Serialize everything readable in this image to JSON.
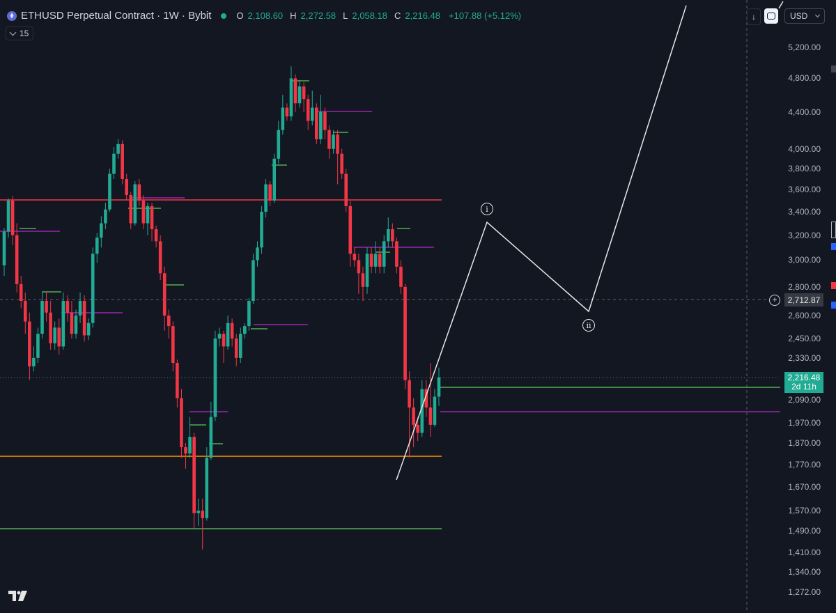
{
  "legend": {
    "title": "ETHUSD Perpetual Contract · 1W · Bybit",
    "o_key": "O",
    "o": "2,108.60",
    "h_key": "H",
    "h": "2,272.58",
    "l_key": "L",
    "l": "2,058.18",
    "c_key": "C",
    "c": "2,216.48",
    "change": "+107.88 (+5.12%)"
  },
  "indicator": {
    "value": "15"
  },
  "controls": {
    "currency": "USD"
  },
  "icons": {
    "coin": "ethereum-coin-icon",
    "down_arrow": "arrow-down-icon",
    "cycle": "refresh-icon",
    "chevron": "chevron-down-icon",
    "plus": "plus-circle-icon",
    "logo": "tradingview-logo-icon"
  },
  "price_axis": {
    "ticks": [
      "5,200.00",
      "4,800.00",
      "4,400.00",
      "4,000.00",
      "3,800.00",
      "3,600.00",
      "3,400.00",
      "3,200.00",
      "3,000.00",
      "2,800.00",
      "2,600.00",
      "2,450.00",
      "2,330.00",
      "2,090.00",
      "1,970.00",
      "1,870.00",
      "1,770.00",
      "1,670.00",
      "1,570.00",
      "1,490.00",
      "1,410.00",
      "1,340.00",
      "1,272.00"
    ],
    "crosshair_price": "2,712.87",
    "last_price": "2,216.48",
    "countdown": "2d 11h"
  },
  "waves": [
    "i",
    "ii"
  ],
  "colors": {
    "background": "#131722",
    "up": "#22ab94",
    "down": "#f23645",
    "resistance": "#f23645",
    "support_orange": "#ff9800",
    "support_green": "#4caf50",
    "purple": "#9c27b0",
    "projection": "#e6e6e6"
  },
  "chart_data": {
    "type": "candlestick",
    "symbol": "ETHUSD",
    "interval": "1W",
    "scale": "log",
    "ylim": [
      1230,
      5500
    ],
    "candles": [
      [
        2960,
        3230,
        2880,
        3260
      ],
      [
        3230,
        3500,
        3180,
        3520
      ],
      [
        3500,
        3200,
        3120,
        3540
      ],
      [
        3200,
        2820,
        2760,
        3300
      ],
      [
        2820,
        2700,
        2650,
        2880
      ],
      [
        2700,
        2560,
        2480,
        2760
      ],
      [
        2560,
        2280,
        2200,
        2620
      ],
      [
        2280,
        2330,
        2250,
        2400
      ],
      [
        2330,
        2480,
        2300,
        2520
      ],
      [
        2480,
        2700,
        2450,
        2760
      ],
      [
        2700,
        2620,
        2560,
        2760
      ],
      [
        2620,
        2420,
        2380,
        2700
      ],
      [
        2420,
        2520,
        2380,
        2560
      ],
      [
        2520,
        2400,
        2350,
        2580
      ],
      [
        2400,
        2700,
        2380,
        2760
      ],
      [
        2700,
        2620,
        2560,
        2740
      ],
      [
        2620,
        2480,
        2450,
        2700
      ],
      [
        2480,
        2600,
        2450,
        2640
      ],
      [
        2600,
        2700,
        2550,
        2760
      ],
      [
        2700,
        2470,
        2430,
        2740
      ],
      [
        2470,
        2550,
        2440,
        2580
      ],
      [
        2550,
        3050,
        2520,
        3100
      ],
      [
        3050,
        3180,
        2980,
        3220
      ],
      [
        3180,
        3300,
        3100,
        3360
      ],
      [
        3300,
        3420,
        3250,
        3480
      ],
      [
        3420,
        3750,
        3400,
        3800
      ],
      [
        3750,
        3950,
        3700,
        4020
      ],
      [
        3950,
        4050,
        3900,
        4100
      ],
      [
        4050,
        3700,
        3650,
        4090
      ],
      [
        3700,
        3550,
        3500,
        3750
      ],
      [
        3550,
        3300,
        3250,
        3580
      ],
      [
        3300,
        3650,
        3280,
        3680
      ],
      [
        3650,
        3500,
        3450,
        3700
      ],
      [
        3500,
        3300,
        3250,
        3550
      ],
      [
        3300,
        3450,
        3200,
        3480
      ],
      [
        3450,
        3250,
        3150,
        3480
      ],
      [
        3250,
        3150,
        3100,
        3280
      ],
      [
        3150,
        2900,
        2850,
        3200
      ],
      [
        2900,
        2600,
        2500,
        2950
      ],
      [
        2600,
        2530,
        2450,
        2640
      ],
      [
        2530,
        2300,
        2250,
        2560
      ],
      [
        2300,
        2100,
        2050,
        2320
      ],
      [
        2100,
        1850,
        1800,
        2150
      ],
      [
        1850,
        1820,
        1750,
        1870
      ],
      [
        1820,
        1900,
        1800,
        2000
      ],
      [
        1900,
        1560,
        1500,
        1920
      ],
      [
        1560,
        1570,
        1510,
        1620
      ],
      [
        1570,
        1540,
        1420,
        1620
      ],
      [
        1540,
        1800,
        1530,
        1850
      ],
      [
        1800,
        2000,
        1790,
        2080
      ],
      [
        2000,
        2450,
        1980,
        2500
      ],
      [
        2450,
        2480,
        2400,
        2520
      ],
      [
        2480,
        2400,
        2300,
        2500
      ],
      [
        2400,
        2550,
        2380,
        2600
      ],
      [
        2550,
        2450,
        2400,
        2580
      ],
      [
        2450,
        2330,
        2280,
        2480
      ],
      [
        2330,
        2480,
        2300,
        2520
      ],
      [
        2480,
        2530,
        2450,
        2550
      ],
      [
        2530,
        2700,
        2500,
        2720
      ],
      [
        2700,
        3000,
        2680,
        3050
      ],
      [
        3000,
        3100,
        2950,
        3150
      ],
      [
        3100,
        3400,
        3050,
        3450
      ],
      [
        3400,
        3650,
        3350,
        3700
      ],
      [
        3650,
        3500,
        3450,
        3680
      ],
      [
        3500,
        3900,
        3480,
        3950
      ],
      [
        3900,
        4200,
        3850,
        4300
      ],
      [
        4200,
        4450,
        4150,
        4600
      ],
      [
        4450,
        4350,
        4300,
        4500
      ],
      [
        4350,
        4800,
        4300,
        4950
      ],
      [
        4800,
        4500,
        4400,
        4850
      ],
      [
        4500,
        4700,
        4450,
        4780
      ],
      [
        4700,
        4550,
        4400,
        4750
      ],
      [
        4550,
        4300,
        4200,
        4600
      ],
      [
        4300,
        4450,
        4250,
        4650
      ],
      [
        4450,
        4100,
        4050,
        4500
      ],
      [
        4100,
        4400,
        4050,
        4600
      ],
      [
        4400,
        4200,
        4100,
        4450
      ],
      [
        4200,
        4000,
        3900,
        4250
      ],
      [
        4000,
        4150,
        3950,
        4200
      ],
      [
        4150,
        3950,
        3650,
        4200
      ],
      [
        3950,
        3750,
        3700,
        4000
      ],
      [
        3750,
        3450,
        3400,
        3800
      ],
      [
        3450,
        3050,
        2950,
        3500
      ],
      [
        3050,
        3000,
        2950,
        3100
      ],
      [
        3000,
        2900,
        2750,
        3050
      ],
      [
        2900,
        2800,
        2700,
        2950
      ],
      [
        2800,
        3050,
        2750,
        3100
      ],
      [
        3050,
        2950,
        2900,
        3100
      ],
      [
        2950,
        3050,
        2900,
        3150
      ],
      [
        3050,
        2950,
        2900,
        3100
      ],
      [
        2950,
        3150,
        2900,
        3200
      ],
      [
        3150,
        3250,
        3100,
        3350
      ],
      [
        3250,
        3150,
        3100,
        3300
      ],
      [
        3150,
        2950,
        2900,
        3180
      ],
      [
        2950,
        2800,
        2750,
        3000
      ],
      [
        2800,
        2200,
        2150,
        2820
      ],
      [
        2200,
        2050,
        1800,
        2250
      ],
      [
        2050,
        1960,
        1850,
        2100
      ],
      [
        1960,
        1920,
        1880,
        2000
      ],
      [
        1920,
        2150,
        1900,
        2200
      ],
      [
        2150,
        2050,
        2000,
        2200
      ],
      [
        2050,
        1960,
        1900,
        2300
      ],
      [
        1960,
        2108,
        1950,
        2150
      ],
      [
        2108,
        2216,
        2058,
        2273
      ]
    ]
  }
}
